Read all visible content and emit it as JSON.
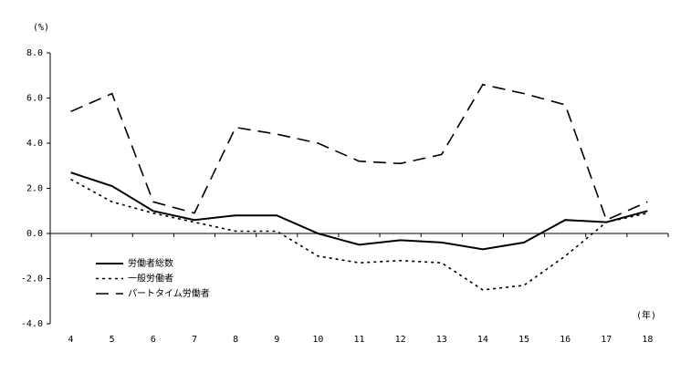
{
  "chart_data": {
    "type": "line",
    "y_label": "(%)",
    "x_label": "(年)",
    "categories": [
      "4",
      "5",
      "6",
      "7",
      "8",
      "9",
      "10",
      "11",
      "12",
      "13",
      "14",
      "15",
      "16",
      "17",
      "18"
    ],
    "series": [
      {
        "name": "労働者総数",
        "color": "#000000",
        "line_style": "solid",
        "values": [
          2.7,
          2.1,
          1.0,
          0.6,
          0.8,
          0.8,
          0.0,
          -0.5,
          -0.3,
          -0.4,
          -0.7,
          -0.4,
          0.6,
          0.5,
          1.0
        ]
      },
      {
        "name": "一般労働者",
        "color": "#000000",
        "line_style": "dotted",
        "values": [
          2.4,
          1.4,
          0.9,
          0.5,
          0.1,
          0.1,
          -1.0,
          -1.3,
          -1.2,
          -1.3,
          -2.5,
          -2.3,
          -1.0,
          0.5,
          0.9
        ]
      },
      {
        "name": "パートタイム労働者",
        "color": "#000000",
        "line_style": "dashed",
        "values": [
          5.4,
          6.2,
          1.4,
          0.9,
          4.7,
          4.4,
          4.0,
          3.2,
          3.1,
          3.5,
          6.6,
          6.2,
          5.7,
          0.6,
          1.4
        ]
      }
    ],
    "ylim": [
      -4,
      8
    ],
    "yticks": [
      {
        "value": 8,
        "label": "8.0"
      },
      {
        "value": 6,
        "label": "6.0"
      },
      {
        "value": 4,
        "label": "4.0"
      },
      {
        "value": 2,
        "label": "2.0"
      },
      {
        "value": 0,
        "label": "0.0"
      },
      {
        "value": -2,
        "label": "-2.0"
      },
      {
        "value": -4,
        "label": "-4.0"
      }
    ],
    "grid": false,
    "legend": "lower-left"
  }
}
